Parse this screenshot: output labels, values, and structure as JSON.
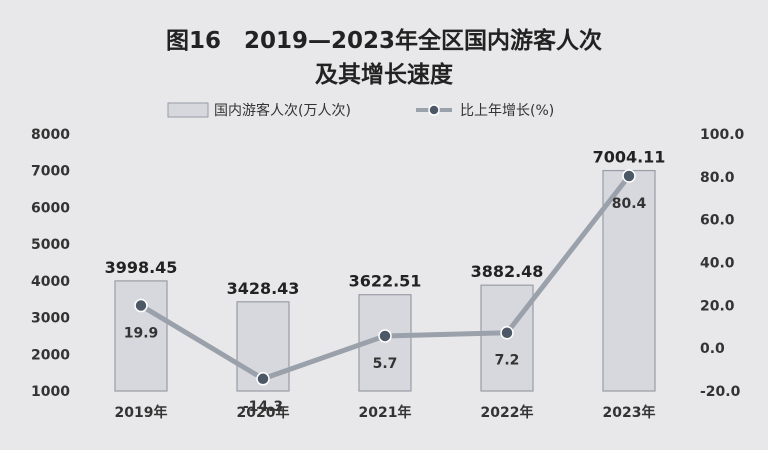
{
  "chart_data": {
    "type": "bar",
    "title_lines": [
      "图16　2019—2023年全区国内游客人次",
      "及其增长速度"
    ],
    "categories": [
      "2019年",
      "2020年",
      "2021年",
      "2022年",
      "2023年"
    ],
    "series": [
      {
        "name": "国内游客人次(万人次)",
        "type": "bar",
        "axis": "left",
        "values": [
          3998.45,
          3428.43,
          3622.51,
          3882.48,
          7004.11
        ],
        "labels": [
          "3998.45",
          "3428.43",
          "3622.51",
          "3882.48",
          "7004.11"
        ]
      },
      {
        "name": "比上年增长(%)",
        "type": "line",
        "axis": "right",
        "values": [
          19.9,
          -14.3,
          5.7,
          7.2,
          80.4
        ],
        "labels": [
          "19.9",
          "-14.3",
          "5.7",
          "7.2",
          "80.4"
        ]
      }
    ],
    "y_left": {
      "min": 1000,
      "max": 8000,
      "ticks": [
        "1000",
        "2000",
        "3000",
        "4000",
        "5000",
        "6000",
        "7000",
        "8000"
      ]
    },
    "y_right": {
      "min": -20,
      "max": 100,
      "ticks": [
        "-20.0",
        "0.0",
        "20.0",
        "40.0",
        "60.0",
        "80.0",
        "100.0"
      ]
    },
    "legend_position": "top",
    "grid": false,
    "colors": {
      "bar_fill": "#d7d8de",
      "bar_stroke": "#9a9ca6",
      "line": "#9aa1ab",
      "marker": "#4d5866",
      "background": "#e8e8ea"
    }
  }
}
